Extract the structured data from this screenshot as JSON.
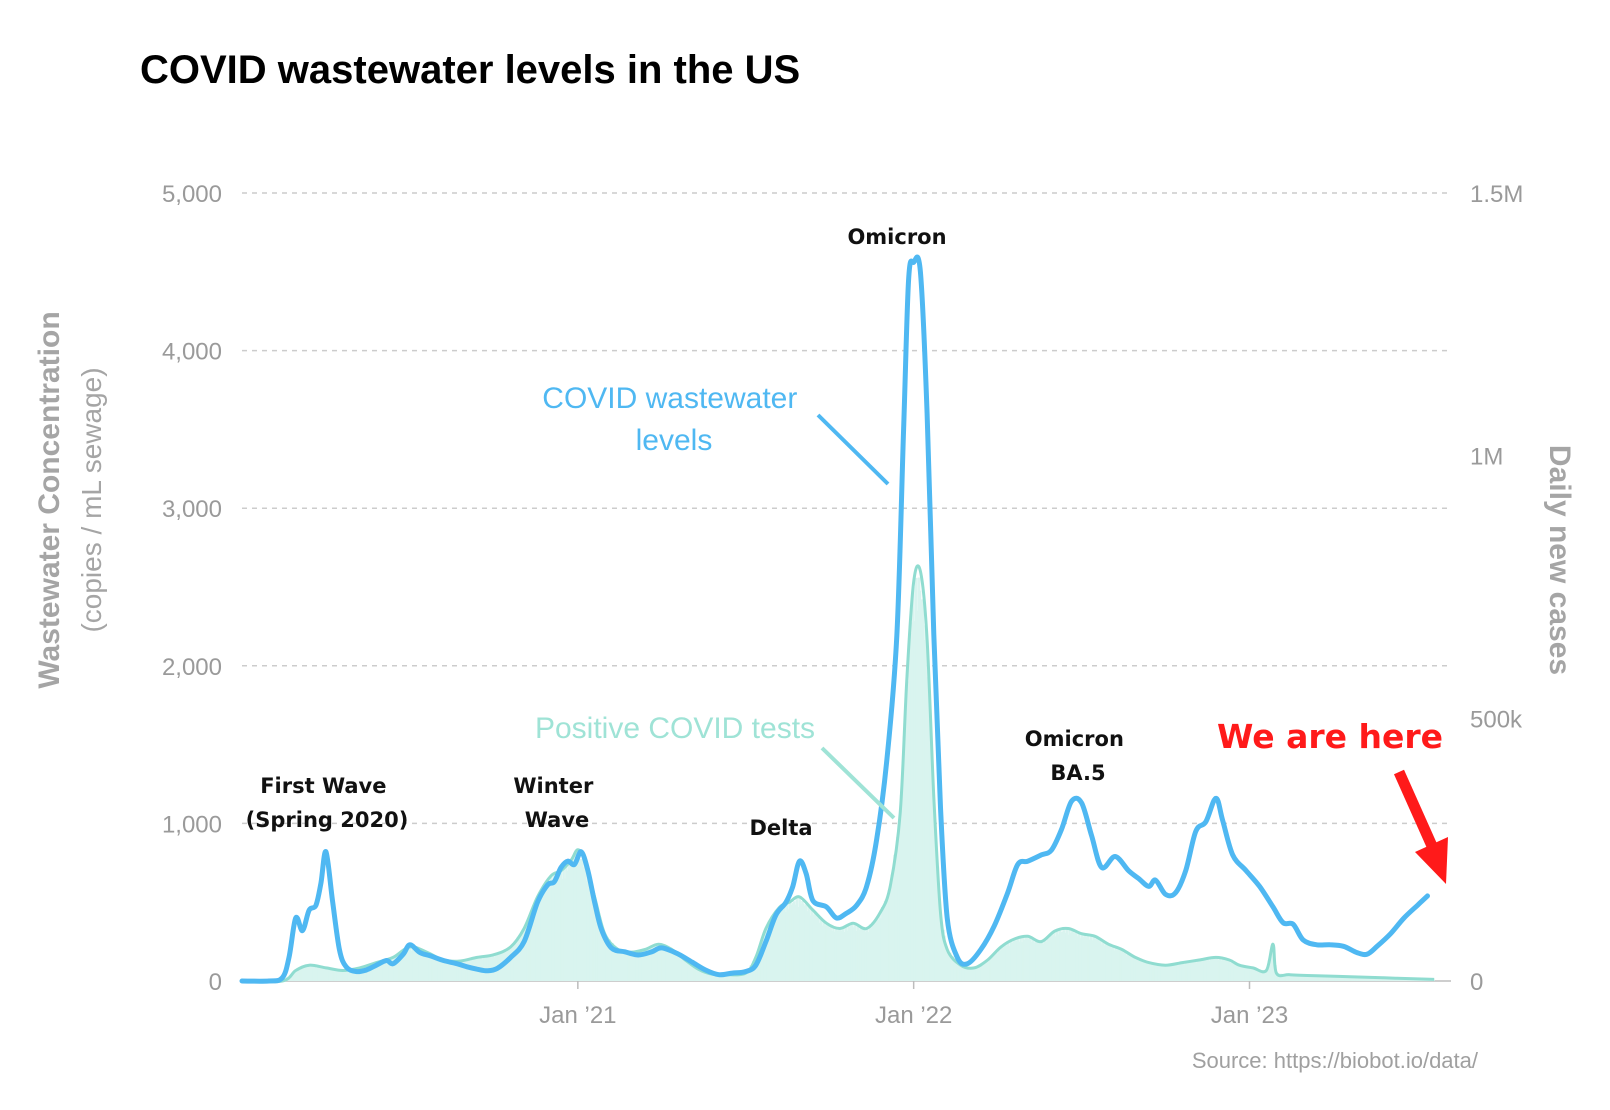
{
  "title": "COVID wastewater levels in the US",
  "source": "Source: https://biobot.io/data/",
  "colors": {
    "wastewater": "#4fb8f2",
    "cases": "#8fdcd0",
    "cases_fill": "#d9f4ef",
    "here": "#ff1a1a",
    "grid": "#cccccc",
    "axis_text": "#9a9a9a"
  },
  "chart_data": {
    "type": "line",
    "y_left": {
      "label": "Wastewater Concentration",
      "sublabel": "(copies / mL sewage)",
      "lim": [
        0,
        5000
      ],
      "ticks": [
        "0",
        "1,000",
        "2,000",
        "3,000",
        "4,000",
        "5,000"
      ],
      "tick_values": [
        0,
        1000,
        2000,
        3000,
        4000,
        5000
      ]
    },
    "y_right": {
      "label": "Daily new cases",
      "lim": [
        0,
        1500000
      ],
      "ticks": [
        "0",
        "500k",
        "1M",
        "1.5M"
      ],
      "tick_values": [
        0,
        500000,
        1000000,
        1500000
      ]
    },
    "x": {
      "start": 2020.0,
      "end": 2023.6,
      "ticks": [
        "Jan ’21",
        "Jan ’22",
        "Jan ’23"
      ],
      "tick_values": [
        2021.0,
        2022.0,
        2023.0
      ]
    },
    "series": [
      {
        "name": "COVID wastewater levels",
        "axis": "left",
        "points": [
          [
            2020.0,
            0
          ],
          [
            2020.08,
            0
          ],
          [
            2020.12,
            20
          ],
          [
            2020.14,
            150
          ],
          [
            2020.16,
            400
          ],
          [
            2020.18,
            320
          ],
          [
            2020.2,
            450
          ],
          [
            2020.22,
            480
          ],
          [
            2020.235,
            620
          ],
          [
            2020.25,
            820
          ],
          [
            2020.27,
            500
          ],
          [
            2020.29,
            200
          ],
          [
            2020.31,
            90
          ],
          [
            2020.34,
            60
          ],
          [
            2020.37,
            70
          ],
          [
            2020.4,
            100
          ],
          [
            2020.43,
            130
          ],
          [
            2020.45,
            110
          ],
          [
            2020.48,
            170
          ],
          [
            2020.5,
            230
          ],
          [
            2020.53,
            180
          ],
          [
            2020.56,
            160
          ],
          [
            2020.6,
            130
          ],
          [
            2020.64,
            110
          ],
          [
            2020.67,
            90
          ],
          [
            2020.7,
            75
          ],
          [
            2020.73,
            65
          ],
          [
            2020.76,
            80
          ],
          [
            2020.8,
            150
          ],
          [
            2020.84,
            250
          ],
          [
            2020.88,
            500
          ],
          [
            2020.91,
            610
          ],
          [
            2020.93,
            630
          ],
          [
            2020.95,
            720
          ],
          [
            2020.97,
            760
          ],
          [
            2020.99,
            740
          ],
          [
            2021.01,
            820
          ],
          [
            2021.03,
            700
          ],
          [
            2021.05,
            500
          ],
          [
            2021.07,
            330
          ],
          [
            2021.1,
            210
          ],
          [
            2021.14,
            185
          ],
          [
            2021.18,
            165
          ],
          [
            2021.22,
            185
          ],
          [
            2021.25,
            210
          ],
          [
            2021.3,
            170
          ],
          [
            2021.34,
            120
          ],
          [
            2021.38,
            70
          ],
          [
            2021.42,
            40
          ],
          [
            2021.46,
            50
          ],
          [
            2021.5,
            60
          ],
          [
            2021.53,
            100
          ],
          [
            2021.56,
            250
          ],
          [
            2021.59,
            420
          ],
          [
            2021.62,
            500
          ],
          [
            2021.64,
            600
          ],
          [
            2021.66,
            760
          ],
          [
            2021.68,
            680
          ],
          [
            2021.7,
            510
          ],
          [
            2021.74,
            470
          ],
          [
            2021.77,
            400
          ],
          [
            2021.8,
            430
          ],
          [
            2021.83,
            480
          ],
          [
            2021.86,
            600
          ],
          [
            2021.89,
            900
          ],
          [
            2021.92,
            1400
          ],
          [
            2021.95,
            2200
          ],
          [
            2021.97,
            3500
          ],
          [
            2021.985,
            4450
          ],
          [
            2022.0,
            4560
          ],
          [
            2022.02,
            4500
          ],
          [
            2022.04,
            3600
          ],
          [
            2022.06,
            2200
          ],
          [
            2022.08,
            1100
          ],
          [
            2022.1,
            400
          ],
          [
            2022.13,
            150
          ],
          [
            2022.16,
            110
          ],
          [
            2022.2,
            200
          ],
          [
            2022.24,
            350
          ],
          [
            2022.28,
            560
          ],
          [
            2022.31,
            740
          ],
          [
            2022.34,
            760
          ],
          [
            2022.38,
            800
          ],
          [
            2022.41,
            830
          ],
          [
            2022.44,
            960
          ],
          [
            2022.47,
            1140
          ],
          [
            2022.5,
            1130
          ],
          [
            2022.53,
            920
          ],
          [
            2022.56,
            720
          ],
          [
            2022.6,
            790
          ],
          [
            2022.64,
            700
          ],
          [
            2022.67,
            650
          ],
          [
            2022.7,
            600
          ],
          [
            2022.72,
            640
          ],
          [
            2022.75,
            550
          ],
          [
            2022.78,
            560
          ],
          [
            2022.81,
            700
          ],
          [
            2022.84,
            950
          ],
          [
            2022.87,
            1010
          ],
          [
            2022.9,
            1160
          ],
          [
            2022.92,
            1020
          ],
          [
            2022.95,
            800
          ],
          [
            2022.99,
            700
          ],
          [
            2023.03,
            600
          ],
          [
            2023.07,
            470
          ],
          [
            2023.1,
            370
          ],
          [
            2023.13,
            360
          ],
          [
            2023.16,
            260
          ],
          [
            2023.2,
            230
          ],
          [
            2023.24,
            230
          ],
          [
            2023.28,
            220
          ],
          [
            2023.32,
            180
          ],
          [
            2023.35,
            170
          ],
          [
            2023.38,
            220
          ],
          [
            2023.42,
            300
          ],
          [
            2023.46,
            400
          ],
          [
            2023.5,
            480
          ],
          [
            2023.53,
            540
          ]
        ]
      },
      {
        "name": "Positive COVID tests",
        "axis": "right",
        "points": [
          [
            2020.0,
            0
          ],
          [
            2020.12,
            0
          ],
          [
            2020.16,
            20000
          ],
          [
            2020.2,
            30000
          ],
          [
            2020.25,
            25000
          ],
          [
            2020.3,
            20000
          ],
          [
            2020.35,
            25000
          ],
          [
            2020.4,
            35000
          ],
          [
            2020.45,
            45000
          ],
          [
            2020.5,
            65000
          ],
          [
            2020.55,
            55000
          ],
          [
            2020.6,
            40000
          ],
          [
            2020.65,
            38000
          ],
          [
            2020.7,
            45000
          ],
          [
            2020.75,
            50000
          ],
          [
            2020.8,
            65000
          ],
          [
            2020.84,
            100000
          ],
          [
            2020.88,
            160000
          ],
          [
            2020.92,
            200000
          ],
          [
            2020.95,
            210000
          ],
          [
            2020.98,
            230000
          ],
          [
            2021.0,
            250000
          ],
          [
            2021.02,
            230000
          ],
          [
            2021.05,
            160000
          ],
          [
            2021.08,
            90000
          ],
          [
            2021.12,
            60000
          ],
          [
            2021.16,
            55000
          ],
          [
            2021.2,
            60000
          ],
          [
            2021.24,
            70000
          ],
          [
            2021.28,
            60000
          ],
          [
            2021.32,
            40000
          ],
          [
            2021.36,
            22000
          ],
          [
            2021.4,
            13000
          ],
          [
            2021.44,
            12000
          ],
          [
            2021.5,
            15000
          ],
          [
            2021.53,
            45000
          ],
          [
            2021.56,
            100000
          ],
          [
            2021.6,
            140000
          ],
          [
            2021.63,
            150000
          ],
          [
            2021.66,
            160000
          ],
          [
            2021.7,
            135000
          ],
          [
            2021.74,
            110000
          ],
          [
            2021.78,
            100000
          ],
          [
            2021.82,
            110000
          ],
          [
            2021.86,
            100000
          ],
          [
            2021.9,
            130000
          ],
          [
            2021.93,
            180000
          ],
          [
            2021.96,
            320000
          ],
          [
            2021.98,
            580000
          ],
          [
            2022.0,
            760000
          ],
          [
            2022.02,
            780000
          ],
          [
            2022.04,
            650000
          ],
          [
            2022.06,
            350000
          ],
          [
            2022.08,
            130000
          ],
          [
            2022.1,
            60000
          ],
          [
            2022.14,
            30000
          ],
          [
            2022.18,
            25000
          ],
          [
            2022.22,
            40000
          ],
          [
            2022.26,
            65000
          ],
          [
            2022.3,
            80000
          ],
          [
            2022.34,
            85000
          ],
          [
            2022.38,
            75000
          ],
          [
            2022.42,
            95000
          ],
          [
            2022.46,
            100000
          ],
          [
            2022.5,
            90000
          ],
          [
            2022.54,
            85000
          ],
          [
            2022.58,
            70000
          ],
          [
            2022.62,
            60000
          ],
          [
            2022.66,
            45000
          ],
          [
            2022.7,
            35000
          ],
          [
            2022.75,
            30000
          ],
          [
            2022.8,
            35000
          ],
          [
            2022.85,
            40000
          ],
          [
            2022.9,
            45000
          ],
          [
            2022.94,
            40000
          ],
          [
            2022.97,
            30000
          ],
          [
            2023.01,
            25000
          ],
          [
            2023.05,
            20000
          ],
          [
            2023.07,
            70000
          ],
          [
            2023.08,
            15000
          ],
          [
            2023.12,
            12000
          ],
          [
            2023.2,
            10000
          ],
          [
            2023.3,
            8000
          ],
          [
            2023.4,
            6000
          ],
          [
            2023.5,
            4000
          ],
          [
            2023.55,
            3000
          ]
        ]
      }
    ],
    "annotations": [
      {
        "id": "first-wave",
        "lines": [
          "First Wave",
          "(Spring 2020)"
        ]
      },
      {
        "id": "winter-wave",
        "lines": [
          "Winter",
          "Wave"
        ]
      },
      {
        "id": "delta",
        "lines": [
          "Delta"
        ]
      },
      {
        "id": "omicron",
        "lines": [
          "Omicron"
        ]
      },
      {
        "id": "omicron-ba5",
        "lines": [
          "Omicron",
          "BA.5"
        ]
      }
    ],
    "callouts": {
      "wastewater": [
        "COVID wastewater",
        "levels"
      ],
      "cases": [
        "Positive COVID tests"
      ],
      "here": "We are here"
    }
  }
}
